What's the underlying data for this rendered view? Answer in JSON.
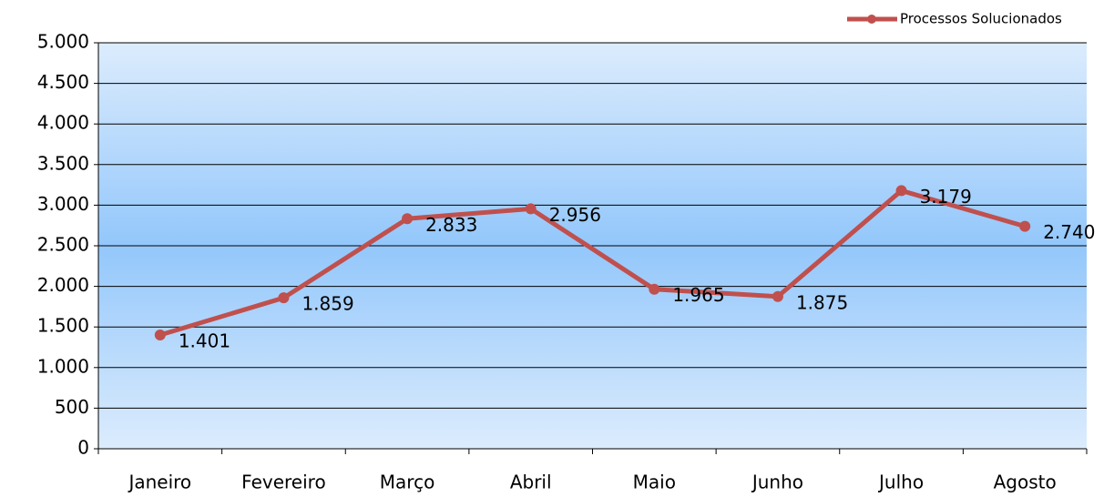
{
  "chart_data": {
    "type": "line",
    "categories": [
      "Janeiro",
      "Fevereiro",
      "Março",
      "Abril",
      "Maio",
      "Junho",
      "Julho",
      "Agosto"
    ],
    "series": [
      {
        "name": "Processos Solucionados",
        "color": "#c0504d",
        "values": [
          1401,
          1859,
          2833,
          2956,
          1965,
          1875,
          3179,
          2740
        ],
        "value_labels": [
          "1.401",
          "1.859",
          "2.833",
          "2.956",
          "1.965",
          "1.875",
          "3.179",
          "2.740"
        ]
      }
    ],
    "ylim": [
      0,
      5000
    ],
    "yticks": [
      0,
      500,
      {
        "value": 1000,
        "label": "1.000"
      },
      {
        "value": 1500,
        "label": "1.500"
      },
      {
        "value": 2000,
        "label": "2.000"
      },
      {
        "value": 2500,
        "label": "2.500"
      },
      {
        "value": 3000,
        "label": "3.000"
      },
      {
        "value": 3500,
        "label": "3.500"
      },
      {
        "value": 4000,
        "label": "4.000"
      },
      {
        "value": 4500,
        "label": "4.500"
      },
      {
        "value": 5000,
        "label": "5.000"
      }
    ],
    "grid": true,
    "legend": "top-right"
  }
}
